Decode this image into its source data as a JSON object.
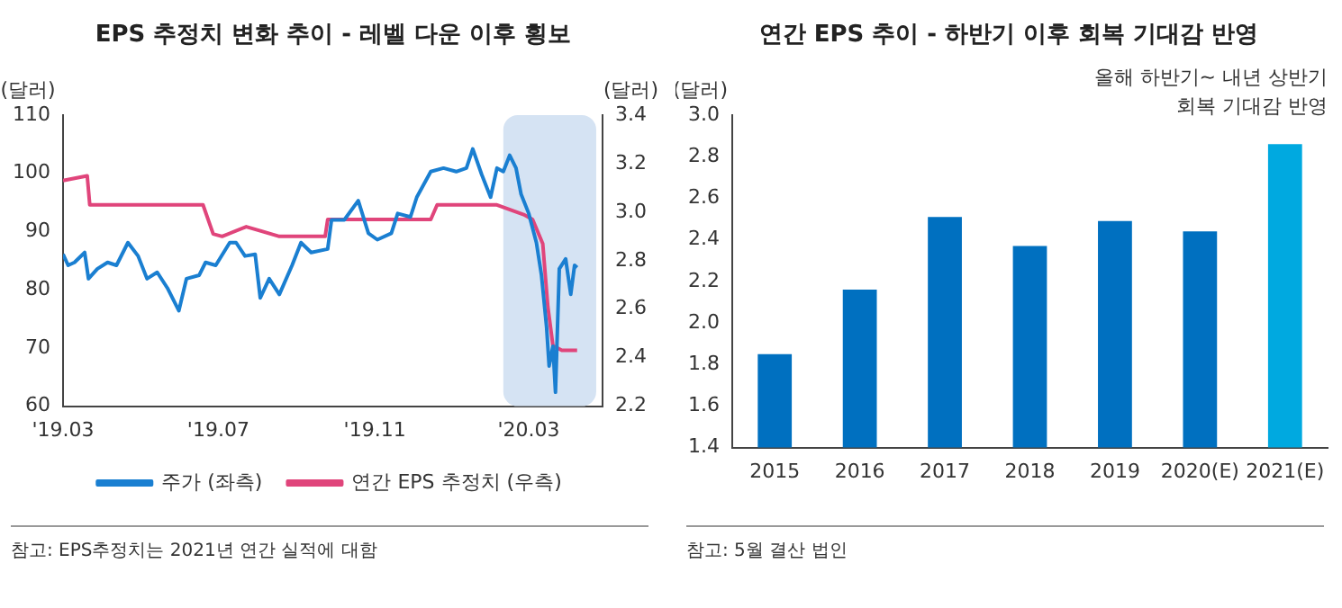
{
  "chart_data": [
    {
      "type": "line",
      "title": "EPS 추정치 변화 추이 - 레벨 다운 이후 횡보",
      "ylabel": "(달러)",
      "y2label": "(달러)",
      "xlim": [
        "2019-03-01",
        "2020-04-28"
      ],
      "xticks": [
        {
          "value": "2019-03-01",
          "label": "'19.03"
        },
        {
          "value": "2019-07-01",
          "label": "'19.07"
        },
        {
          "value": "2019-11-01",
          "label": "'19.11"
        },
        {
          "value": "2020-03-01",
          "label": "'20.03"
        }
      ],
      "ylim": [
        60,
        110
      ],
      "yticks": [
        60,
        70,
        80,
        90,
        100,
        110
      ],
      "y2lim": [
        2.2,
        3.4
      ],
      "y2ticks": [
        2.2,
        2.4,
        2.6,
        2.8,
        {
          "value": 3,
          "label": "3.0"
        },
        3.2,
        3.4
      ],
      "legend": "bottom",
      "marker": "none",
      "line_style": "solid",
      "series": [
        {
          "name": "주가 (좌측)",
          "color": "#1a7fd1",
          "x": [
            "2019-03-01",
            "2019-03-05",
            "2019-03-10",
            "2019-03-18",
            "2019-03-21",
            "2019-03-28",
            "2019-04-05",
            "2019-04-12",
            "2019-04-21",
            "2019-04-29",
            "2019-05-06",
            "2019-05-14",
            "2019-05-22",
            "2019-05-31",
            "2019-06-06",
            "2019-06-16",
            "2019-06-21",
            "2019-06-29",
            "2019-07-10",
            "2019-07-15",
            "2019-07-22",
            "2019-07-30",
            "2019-08-03",
            "2019-08-10",
            "2019-08-18",
            "2019-08-28",
            "2019-09-04",
            "2019-09-12",
            "2019-09-25",
            "2019-09-28",
            "2019-10-08",
            "2019-10-19",
            "2019-10-27",
            "2019-11-03",
            "2019-11-14",
            "2019-11-19",
            "2019-11-29",
            "2019-12-04",
            "2019-12-15",
            "2019-12-25",
            "2020-01-04",
            "2020-01-12",
            "2020-01-17",
            "2020-01-24",
            "2020-01-31",
            "2020-02-05",
            "2020-02-10",
            "2020-02-15",
            "2020-02-20",
            "2020-02-24",
            "2020-03-01",
            "2020-03-07",
            "2020-03-11",
            "2020-03-15",
            "2020-03-17",
            "2020-03-20",
            "2020-03-22",
            "2020-03-25",
            "2020-03-30",
            "2020-04-03",
            "2020-04-06",
            "2020-04-08"
          ],
          "values": [
            86.1,
            84.2,
            84.7,
            86.4,
            81.9,
            83.6,
            84.7,
            84.2,
            88.1,
            85.8,
            81.9,
            83.0,
            80.3,
            76.4,
            81.9,
            82.5,
            84.7,
            84.2,
            88.1,
            88.1,
            85.8,
            86.1,
            78.6,
            81.9,
            79.2,
            84.2,
            88.1,
            86.4,
            87.0,
            92.0,
            92.0,
            95.3,
            89.7,
            88.6,
            89.7,
            93.1,
            92.5,
            95.9,
            100.3,
            100.9,
            100.3,
            100.9,
            104.2,
            99.8,
            95.9,
            100.9,
            100.3,
            103.1,
            100.9,
            96.4,
            93.1,
            88.1,
            82.5,
            73.6,
            66.9,
            70.3,
            62.4,
            83.6,
            85.3,
            79.2,
            84.2,
            83.8
          ]
        },
        {
          "name": "연간 EPS 추정치 (우측)",
          "color": "#e0457b",
          "axis": "y2",
          "x": [
            "2019-03-01",
            "2019-03-20",
            "2019-03-22",
            "2019-04-26",
            "2019-06-19",
            "2019-06-27",
            "2019-07-04",
            "2019-07-23",
            "2019-08-18",
            "2019-09-23",
            "2019-09-25",
            "2019-12-15",
            "2019-12-20",
            "2020-02-05",
            "2020-02-26",
            "2020-03-04",
            "2020-03-12",
            "2020-03-16",
            "2020-03-20",
            "2020-03-27",
            "2020-04-08"
          ],
          "values": [
            3.13,
            3.15,
            3.03,
            3.03,
            3.03,
            2.91,
            2.9,
            2.94,
            2.9,
            2.9,
            2.97,
            2.97,
            3.03,
            3.03,
            2.99,
            2.97,
            2.87,
            2.61,
            2.45,
            2.43,
            2.43
          ]
        }
      ],
      "bands": [
        {
          "axis": "x",
          "from": "2020-02-10",
          "to": "2020-04-23",
          "color": "#d5e3f3"
        }
      ],
      "annotations": [
        "참고: EPS추정치는 2021년 연간 실적에 대함"
      ]
    },
    {
      "type": "bar",
      "title": "연간 EPS 추이 - 하반기 이후 회복 기대감 반영",
      "ylabel": "(달러)",
      "categories": [
        "2015",
        "2016",
        "2017",
        "2018",
        "2019",
        "2020(E)",
        "2021(E)"
      ],
      "values": [
        1.85,
        2.16,
        2.51,
        2.37,
        2.49,
        2.44,
        2.86
      ],
      "colors": [
        "#0070c0",
        "#0070c0",
        "#0070c0",
        "#0070c0",
        "#0070c0",
        "#0070c0",
        "#00a9e0"
      ],
      "ylim": [
        1.4,
        3.0
      ],
      "yticks": [
        1.4,
        1.6,
        1.8,
        {
          "value": 2,
          "label": "2.0"
        },
        2.2,
        2.4,
        2.6,
        2.8,
        {
          "value": 3,
          "label": "3.0"
        }
      ],
      "annotations": [
        "올해 하반기~ 내년 상반기\n회복 기대감 반영",
        "참고: 5월 결산 법인"
      ]
    }
  ]
}
